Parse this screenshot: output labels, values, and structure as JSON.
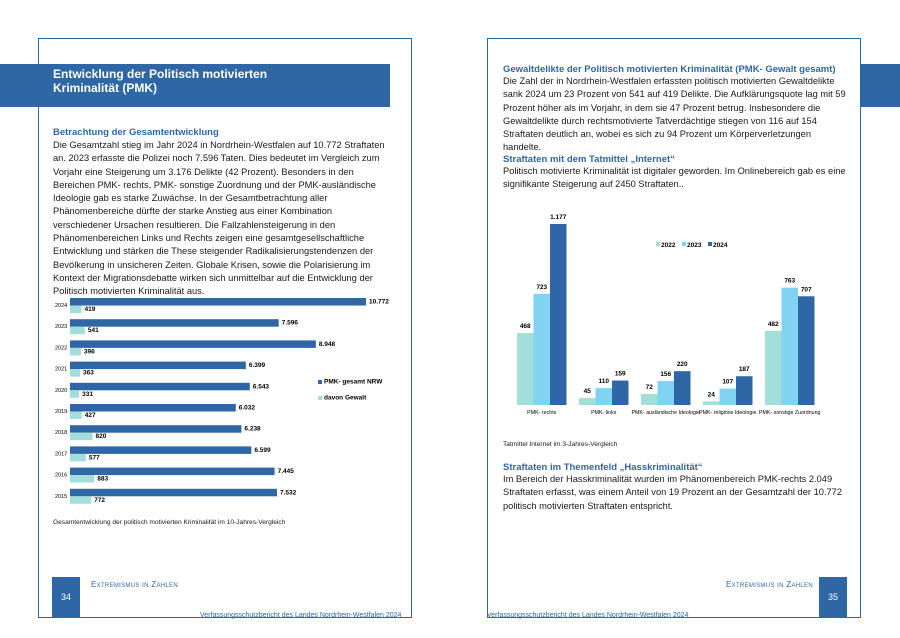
{
  "left_page": {
    "header_title": "Entwicklung der Politisch motivierten Kriminalität (PMK)",
    "section_heading": "Betrachtung der Gesamtentwicklung",
    "paragraph": "Die Gesamtzahl stieg im Jahr 2024 in Nordrhein-Westfalen auf 10.772 Straftaten an. 2023 erfasste die Polizei noch 7.596 Taten. Dies bedeutet im Vergleich zum Vorjahr eine Steigerung um 3.176 Delikte (42 Prozent). Besonders in den Bereichen PMK- rechts, PMK- sonstige Zuordnung und der PMK-ausländische Ideologie gab es starke Zuwächse. In der Gesamtbetrachtung aller Phänomenbereiche dürfte der starke Anstieg aus einer Kombination verschiedener Ursachen resultieren. Die Fallzahlensteigerung in den Phänomenbereichen Links und Rechts zeigen eine gesamtgesellschaftliche Entwicklung und stärken die These steigender Radikalisierungstendenzen der Bevölkerung in unsicheren Zeiten. Globale Krisen, sowie die Polarisierung im Kontext der Migrationsdebatte wirken sich unmittelbar auf die Entwicklung der Politisch motivierten Kriminalität aus.",
    "chart_caption": "Gesamtentwicklung der politisch motivierten Kriminalität im 10-Jahres-Vergleich",
    "page_number": "34",
    "running_head": "Extremismus in Zahlen",
    "footer": "Verfassungsschutzbericht des Landes Nordrhein-Westfalen 2024"
  },
  "right_page": {
    "heading_1": "Gewaltdelikte der Politisch motivierten Kriminalität (PMK- Gewalt gesamt)",
    "paragraph_1": "Die Zahl der in Nordrhein-Westfalen erfassten politisch motivierten Gewaltdelikte sank 2024 um 23 Prozent von 541 auf 419 Delikte. Die Aufklärungsquote lag mit 59 Prozent höher als im Vorjahr, in dem sie 47 Prozent betrug. Insbesondere die Gewaltdelikte durch rechtsmotivierte Tatverdächtige stiegen von 116 auf 154 Straftaten deutlich an, wobei es sich zu 94 Prozent um Körperverletzungen handelte.",
    "heading_2": "Straftaten mit dem Tatmittel „Internet“",
    "paragraph_2": "Politisch motivierte Kriminalität ist digitaler geworden. Im Onlinebereich gab es eine signifikante Steigerung auf 2450 Straftaten..",
    "chart_caption": "Tatmittel Internet im 3-Jahres-Vergleich",
    "heading_3": "Straftaten im Themenfeld „Hasskriminalität“",
    "paragraph_3": "Im Bereich der Hasskriminalität wurden im Phänomenbereich PMK-rechts 2.049 Straftaten erfasst, was einem Anteil von 19 Prozent an der Gesamtzahl der 10.772 politisch motivierten Straftaten entspricht.",
    "page_number": "35",
    "running_head": "Extremismus in Zahlen",
    "footer": "Verfassungsschutzbericht des Landes Nordrhein-Westfalen 2024"
  },
  "chart_data": [
    {
      "type": "bar",
      "orientation": "horizontal",
      "categories": [
        "2024",
        "2023",
        "2022",
        "2021",
        "2020",
        "2019",
        "2018",
        "2017",
        "2016",
        "2015"
      ],
      "series": [
        {
          "name": "PMK- gesamt NRW",
          "color": "#2f67a6",
          "values": [
            10772,
            7596,
            8948,
            6399,
            6543,
            6032,
            6238,
            6599,
            7445,
            7532
          ],
          "value_labels": [
            "10.772",
            "7.596",
            "8.948",
            "6.399",
            "6.543",
            "6.032",
            "6.238",
            "6.599",
            "7.445",
            "7.532"
          ]
        },
        {
          "name": "davon Gewalt",
          "color": "#a3dedb",
          "values": [
            419,
            541,
            396,
            363,
            331,
            427,
            820,
            577,
            883,
            772
          ]
        }
      ],
      "legend": "right"
    },
    {
      "type": "bar",
      "orientation": "vertical",
      "categories": [
        "PMK- rechts",
        "PMK- links",
        "PMK- ausländische Ideologie",
        "PMK- religiöse Ideologie",
        "PMK- sonstige Zuordnung"
      ],
      "series": [
        {
          "name": "2022",
          "color": "#a3dedb",
          "values": [
            468,
            45,
            72,
            24,
            482
          ]
        },
        {
          "name": "2023",
          "color": "#80d4f2",
          "values": [
            723,
            110,
            156,
            107,
            763
          ]
        },
        {
          "name": "2024",
          "color": "#2f67a6",
          "values": [
            1177,
            159,
            220,
            187,
            707
          ],
          "value_labels": [
            "1.177",
            "159",
            "220",
            "187",
            "707"
          ]
        }
      ],
      "legend": "top"
    }
  ]
}
